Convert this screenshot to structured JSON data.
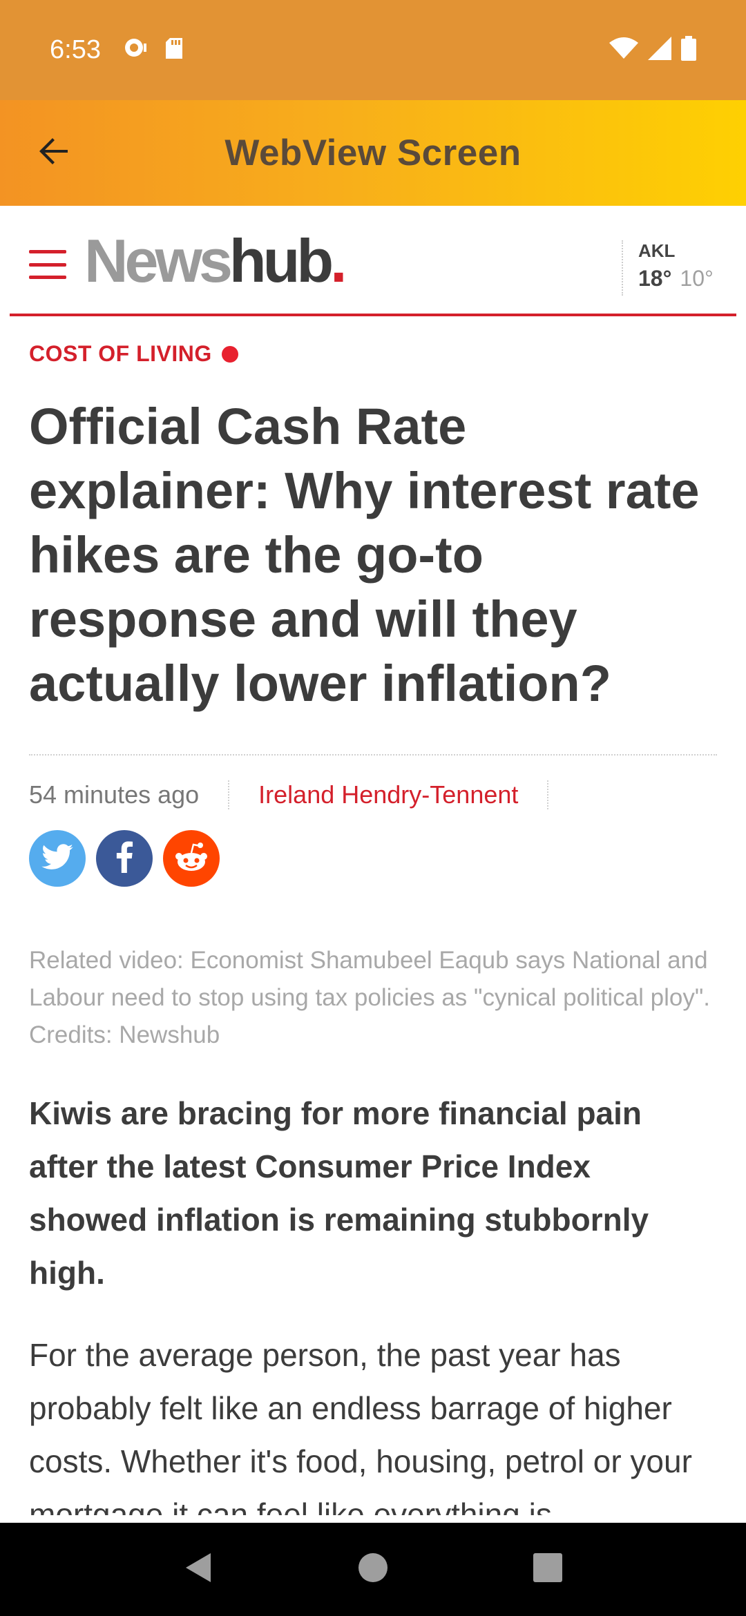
{
  "status_bar": {
    "time": "6:53",
    "left_icons": [
      "chat-bubble-icon",
      "sd-card-icon"
    ],
    "right_icons": [
      "wifi-icon",
      "cell-signal-icon",
      "battery-icon"
    ]
  },
  "app_bar": {
    "title": "WebView Screen",
    "back_icon": "arrow-left-icon"
  },
  "site": {
    "logo_news": "News",
    "logo_hub": "hub",
    "logo_dot": ".",
    "weather": {
      "city": "AKL",
      "high": "18°",
      "low": "10°"
    }
  },
  "article": {
    "category": "COST OF LIVING",
    "headline": "Official Cash Rate explainer: Why interest rate hikes are the go-to response and will they actually lower inflation?",
    "time_ago": "54 minutes ago",
    "author": "Ireland Hendry-Tennent",
    "share": [
      "twitter-icon",
      "facebook-icon",
      "reddit-icon"
    ],
    "caption": "Related video: Economist Shamubeel Eaqub says National and Labour need to stop using tax policies as \"cynical political ploy\". Credits: Newshub",
    "lead": "Kiwis are bracing for more financial pain after the latest Consumer Price Index showed inflation is remaining stubbornly high.",
    "body": "For the average person, the past year has probably felt like an endless barrage of higher costs. Whether it's food, housing, petrol or your mortgage it can feel like everything is"
  },
  "colors": {
    "status_bar": "#E29334",
    "app_bar_start": "#F39323",
    "app_bar_end": "#FED002",
    "brand_red": "#D4202B"
  },
  "nav_bar": {
    "buttons": [
      "back-triangle-icon",
      "home-circle-icon",
      "recents-square-icon"
    ]
  }
}
